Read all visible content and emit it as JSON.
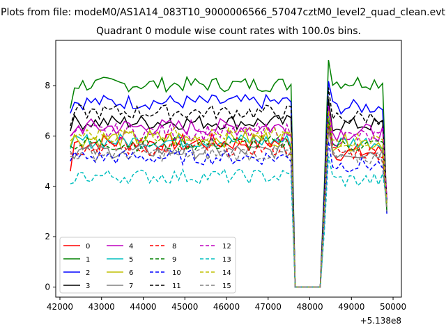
{
  "chart_data": {
    "type": "line",
    "suptitle": "Plots from file: modeM0/AS1A14_083T10_9000006566_57047cztM0_level2_quad_clean.evt",
    "title": "Quadrant 0 module wise count rates with 100.0s bins.",
    "xlabel": "",
    "ylabel": "",
    "x_offset_label": "+5.138e8",
    "xlim": [
      41900,
      50200
    ],
    "ylim": [
      -0.4,
      9.8
    ],
    "xticks": [
      42000,
      43000,
      44000,
      45000,
      46000,
      47000,
      48000,
      49000,
      50000
    ],
    "xtick_labels": [
      "42000",
      "43000",
      "44000",
      "45000",
      "46000",
      "47000",
      "48000",
      "49000",
      "50000"
    ],
    "yticks": [
      0,
      2,
      4,
      6,
      8
    ],
    "ytick_labels": [
      "0",
      "2",
      "4",
      "6",
      "8"
    ],
    "legend_position": "lower-left",
    "series": [
      {
        "name": "0",
        "color": "#ff0000",
        "dash": "solid",
        "base": 5.75,
        "amp": 0.35,
        "post": 5.5,
        "first": 4.6
      },
      {
        "name": "1",
        "color": "#008000",
        "dash": "solid",
        "base": 8.05,
        "amp": 0.3,
        "post": 8.3,
        "first": 7.1
      },
      {
        "name": "2",
        "color": "#0000ff",
        "dash": "solid",
        "base": 7.35,
        "amp": 0.3,
        "post": 7.3,
        "first": 6.9
      },
      {
        "name": "3",
        "color": "#000000",
        "dash": "solid",
        "base": 6.55,
        "amp": 0.3,
        "post": 6.6,
        "first": 6.2
      },
      {
        "name": "4",
        "color": "#bf00bf",
        "dash": "solid",
        "base": 6.35,
        "amp": 0.35,
        "post": 6.3,
        "first": 6.0
      },
      {
        "name": "5",
        "color": "#00bfbf",
        "dash": "solid",
        "base": 5.8,
        "amp": 0.3,
        "post": 5.9,
        "first": 5.5
      },
      {
        "name": "6",
        "color": "#bfbf00",
        "dash": "solid",
        "base": 5.9,
        "amp": 0.35,
        "post": 5.9,
        "first": 5.6
      },
      {
        "name": "7",
        "color": "#808080",
        "dash": "solid",
        "base": 5.4,
        "amp": 0.3,
        "post": 5.5,
        "first": 5.2
      },
      {
        "name": "8",
        "color": "#ff0000",
        "dash": "dashed",
        "base": 5.5,
        "amp": 0.3,
        "post": 5.5,
        "first": 5.3
      },
      {
        "name": "9",
        "color": "#008000",
        "dash": "dashed",
        "base": 5.7,
        "amp": 0.3,
        "post": 5.8,
        "first": 5.6
      },
      {
        "name": "10",
        "color": "#0000ff",
        "dash": "dashed",
        "base": 5.15,
        "amp": 0.3,
        "post": 5.0,
        "first": 5.0
      },
      {
        "name": "11",
        "color": "#000000",
        "dash": "dashed",
        "base": 6.95,
        "amp": 0.3,
        "post": 6.9,
        "first": 6.4
      },
      {
        "name": "12",
        "color": "#bf00bf",
        "dash": "dashed",
        "base": 6.15,
        "amp": 0.35,
        "post": 6.1,
        "first": 6.0
      },
      {
        "name": "13",
        "color": "#00bfbf",
        "dash": "dashed",
        "base": 4.4,
        "amp": 0.3,
        "post": 4.4,
        "first": 4.1
      },
      {
        "name": "14",
        "color": "#bfbf00",
        "dash": "dashed",
        "base": 6.05,
        "amp": 0.3,
        "post": 6.0,
        "first": 5.8
      },
      {
        "name": "15",
        "color": "#808080",
        "dash": "dashed",
        "base": 5.3,
        "amp": 0.3,
        "post": 5.3,
        "first": 5.4
      }
    ],
    "time_axis": {
      "start": 42250,
      "step": 100,
      "n_points": 77,
      "gap_start": 47650,
      "gap_end": 48250,
      "gap_value": 0,
      "spike_time": 48450,
      "spike_boost": 0.9,
      "end_drop_time": 49850,
      "end_value": 3.2
    }
  }
}
